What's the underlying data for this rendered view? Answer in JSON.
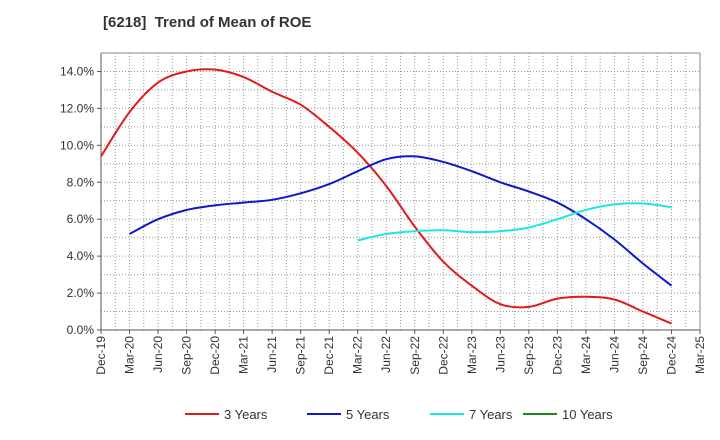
{
  "chart_data": {
    "type": "line",
    "title": "[6218]  Trend of Mean of ROE",
    "xlabel": "",
    "ylabel": "",
    "x_categories": [
      "Dec-19",
      "Mar-20",
      "Jun-20",
      "Sep-20",
      "Dec-20",
      "Mar-21",
      "Jun-21",
      "Sep-21",
      "Dec-21",
      "Mar-22",
      "Jun-22",
      "Sep-22",
      "Dec-22",
      "Mar-23",
      "Jun-23",
      "Sep-23",
      "Dec-23",
      "Mar-24",
      "Jun-24",
      "Sep-24",
      "Dec-24",
      "Mar-25"
    ],
    "y_ticks": [
      "0.0%",
      "2.0%",
      "4.0%",
      "6.0%",
      "8.0%",
      "10.0%",
      "12.0%",
      "14.0%"
    ],
    "ylim": [
      0,
      15
    ],
    "grid": true,
    "legend_position": "bottom",
    "series": [
      {
        "name": "3 Years",
        "color": "#e31a1c",
        "values": [
          9.4,
          11.8,
          13.4,
          14.0,
          14.1,
          13.7,
          12.9,
          12.2,
          11.0,
          9.6,
          7.8,
          5.6,
          3.7,
          2.4,
          1.4,
          1.25,
          1.7,
          1.8,
          1.65,
          1.0,
          0.35,
          null
        ]
      },
      {
        "name": "5 Years",
        "color": "#0c1ac8",
        "values": [
          null,
          5.2,
          6.0,
          6.5,
          6.75,
          6.9,
          7.05,
          7.4,
          7.9,
          8.6,
          9.25,
          9.4,
          9.1,
          8.6,
          8.0,
          7.5,
          6.9,
          6.0,
          4.9,
          3.6,
          2.4,
          null
        ]
      },
      {
        "name": "7 Years",
        "color": "#1ae6e6",
        "values": [
          null,
          null,
          null,
          null,
          null,
          null,
          null,
          null,
          null,
          4.85,
          5.2,
          5.35,
          5.4,
          5.3,
          5.35,
          5.55,
          6.0,
          6.5,
          6.8,
          6.85,
          6.65,
          null
        ]
      },
      {
        "name": "10 Years",
        "color": "#1a8a1a",
        "values": [
          null,
          null,
          null,
          null,
          null,
          null,
          null,
          null,
          null,
          null,
          null,
          null,
          null,
          null,
          null,
          null,
          null,
          null,
          null,
          null,
          null,
          null
        ]
      }
    ]
  }
}
